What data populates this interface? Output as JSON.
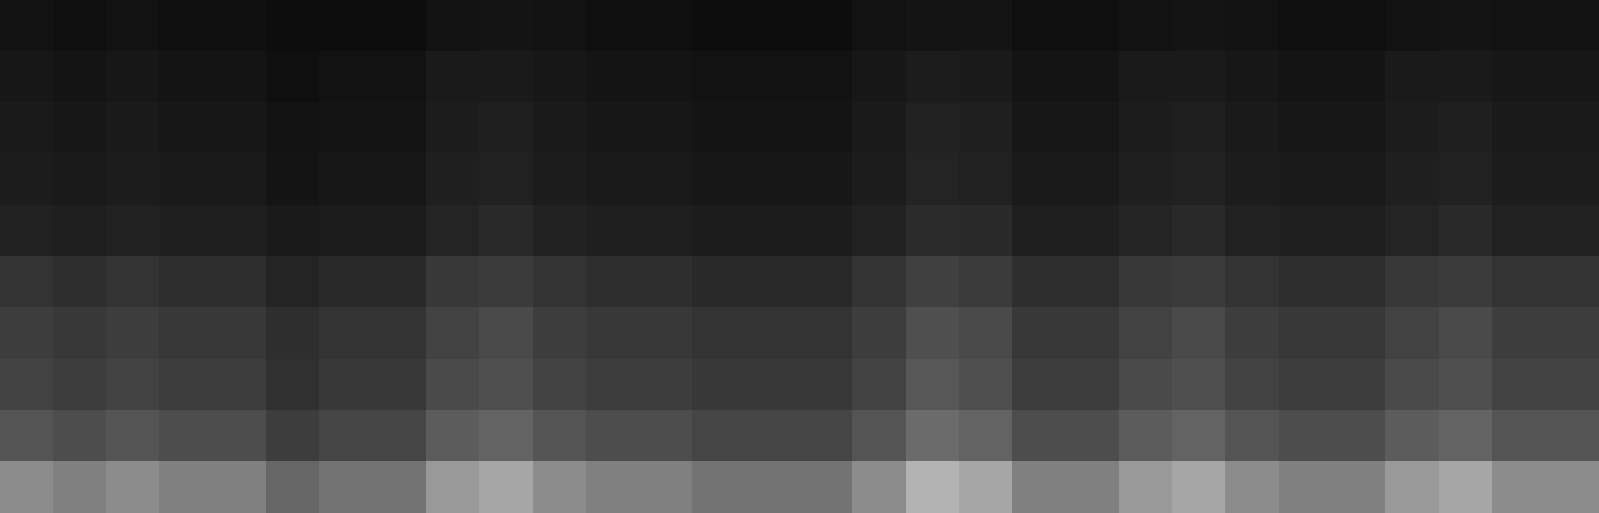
{
  "chart_data": {
    "type": "heatmap",
    "tick_labels": false,
    "color_range": [
      0,
      100
    ],
    "cells": [
      [
        7,
        6,
        7,
        6,
        6,
        5,
        5,
        5,
        7,
        8,
        7,
        6,
        6,
        5,
        5,
        5,
        7,
        8,
        8,
        6,
        6,
        7,
        8,
        7,
        6,
        6,
        7,
        8,
        7,
        7
      ],
      [
        9,
        8,
        9,
        8,
        8,
        6,
        7,
        7,
        10,
        10,
        9,
        8,
        8,
        7,
        7,
        7,
        9,
        11,
        10,
        8,
        8,
        10,
        10,
        9,
        8,
        8,
        10,
        10,
        9,
        9
      ],
      [
        10,
        9,
        10,
        9,
        9,
        7,
        8,
        8,
        11,
        12,
        10,
        9,
        9,
        8,
        8,
        8,
        10,
        13,
        12,
        9,
        9,
        11,
        12,
        10,
        9,
        9,
        11,
        12,
        10,
        10
      ],
      [
        11,
        10,
        11,
        10,
        10,
        8,
        9,
        9,
        12,
        13,
        11,
        10,
        10,
        9,
        9,
        9,
        11,
        14,
        13,
        10,
        10,
        12,
        13,
        11,
        10,
        10,
        12,
        13,
        11,
        11
      ],
      [
        13,
        12,
        13,
        12,
        12,
        10,
        11,
        11,
        14,
        16,
        13,
        12,
        12,
        11,
        11,
        11,
        13,
        17,
        16,
        12,
        12,
        14,
        16,
        13,
        12,
        12,
        14,
        16,
        13,
        13
      ],
      [
        20,
        18,
        20,
        18,
        18,
        14,
        16,
        16,
        22,
        23,
        20,
        18,
        18,
        16,
        16,
        16,
        20,
        25,
        23,
        18,
        18,
        22,
        23,
        20,
        18,
        18,
        22,
        23,
        20,
        20
      ],
      [
        24,
        22,
        24,
        22,
        22,
        18,
        20,
        20,
        26,
        29,
        24,
        22,
        22,
        20,
        20,
        20,
        24,
        31,
        29,
        22,
        22,
        26,
        29,
        24,
        22,
        22,
        26,
        29,
        24,
        24
      ],
      [
        26,
        24,
        26,
        24,
        24,
        19,
        22,
        22,
        29,
        31,
        26,
        24,
        24,
        22,
        22,
        22,
        26,
        34,
        31,
        24,
        24,
        29,
        31,
        26,
        24,
        24,
        29,
        31,
        26,
        26
      ],
      [
        33,
        30,
        33,
        30,
        30,
        24,
        27,
        27,
        36,
        39,
        33,
        30,
        30,
        27,
        27,
        27,
        33,
        42,
        39,
        30,
        30,
        36,
        39,
        33,
        30,
        30,
        36,
        39,
        33,
        33
      ],
      [
        55,
        50,
        55,
        50,
        50,
        40,
        45,
        45,
        60,
        65,
        55,
        50,
        50,
        45,
        45,
        45,
        55,
        70,
        65,
        50,
        50,
        60,
        65,
        55,
        50,
        50,
        60,
        65,
        55,
        55
      ]
    ]
  }
}
